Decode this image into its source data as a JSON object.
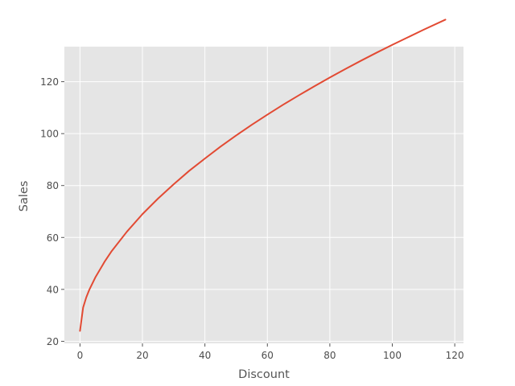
{
  "chart_data": {
    "type": "line",
    "title": "",
    "xlabel": "Discount",
    "ylabel": "Sales",
    "xlim": [
      -5,
      122.8
    ],
    "ylim": [
      19.2,
      133.5
    ],
    "xticks": [
      0,
      20,
      40,
      60,
      80,
      100,
      120
    ],
    "yticks": [
      20,
      40,
      60,
      80,
      100,
      120
    ],
    "xtick_labels": [
      "0",
      "20",
      "40",
      "60",
      "80",
      "100",
      "120"
    ],
    "ytick_labels": [
      "20",
      "40",
      "60",
      "80",
      "100",
      "120"
    ],
    "grid": true,
    "legend": "none",
    "colors": {
      "plot_background": "#e5e5e5",
      "grid": "#ffffff",
      "line": "#e24a33",
      "tick": "#555555"
    },
    "series": [
      {
        "x": [
          0,
          1,
          2,
          3,
          5,
          8,
          10,
          15,
          20,
          25,
          30,
          35,
          40,
          45,
          50,
          55,
          60,
          65,
          70,
          75,
          80,
          85,
          90,
          95,
          100,
          105,
          110,
          117
        ],
        "values": [
          24.0,
          33.0,
          36.9,
          39.9,
          44.8,
          50.9,
          54.5,
          62.2,
          69.0,
          75.0,
          80.5,
          85.7,
          90.4,
          95.0,
          99.3,
          103.4,
          107.3,
          111.1,
          114.7,
          118.2,
          121.6,
          124.9,
          128.1,
          131.2,
          134.2,
          137.1,
          140.0,
          143.9
        ]
      }
    ]
  }
}
